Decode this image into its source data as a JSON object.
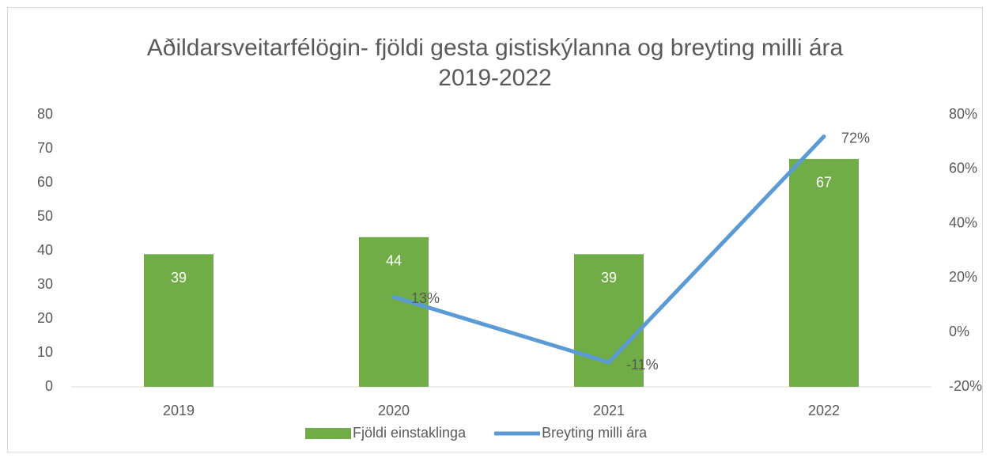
{
  "chart_data": {
    "type": "bar",
    "title": "Aðildarsveitarfélögin- fjöldi gesta gistiskýlanna og breyting milli ára 2019-2022",
    "categories": [
      "2019",
      "2020",
      "2021",
      "2022"
    ],
    "series": [
      {
        "name": "Fjöldi einstaklinga",
        "type": "bar",
        "color": "#70ad47",
        "values": [
          39,
          44,
          39,
          67
        ]
      },
      {
        "name": "Breyting milli ára",
        "type": "line",
        "axis": "y2",
        "color": "#5b9bd5",
        "values": [
          null,
          13,
          -11,
          72
        ],
        "value_labels": [
          null,
          "13%",
          "-11%",
          "72%"
        ]
      }
    ],
    "ylim": [
      0,
      80
    ],
    "yticks": [
      0,
      10,
      20,
      30,
      40,
      50,
      60,
      70,
      80
    ],
    "y2lim": [
      -20,
      80
    ],
    "y2ticks": [
      {
        "value": -20,
        "label": "-20%"
      },
      {
        "value": 0,
        "label": "0%"
      },
      {
        "value": 20,
        "label": "20%"
      },
      {
        "value": 40,
        "label": "40%"
      },
      {
        "value": 60,
        "label": "60%"
      },
      {
        "value": 80,
        "label": "80%"
      }
    ],
    "grid": false,
    "legend": "bottom"
  }
}
